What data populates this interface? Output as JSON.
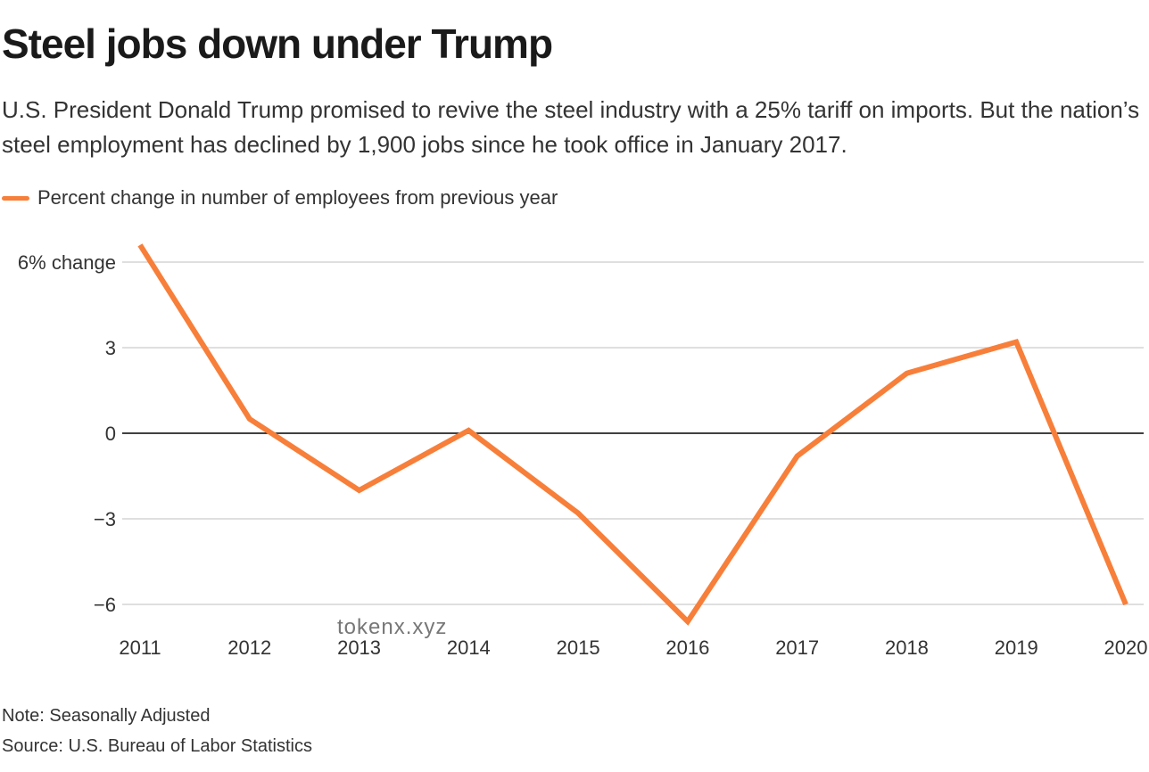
{
  "chart_data": {
    "type": "line",
    "title": "Steel jobs down under Trump",
    "subtitle": "U.S. President Donald Trump promised to revive the steel industry with a 25% tariff on imports. But the nation’s steel employment has declined by 1,900 jobs since he took office in January 2017.",
    "legend": "Percent change in number of employees from previous year",
    "x": [
      "2011",
      "2012",
      "2013",
      "2014",
      "2015",
      "2016",
      "2017",
      "2018",
      "2019",
      "2020"
    ],
    "series": [
      {
        "name": "Percent change in number of employees from previous year",
        "values": [
          6.6,
          0.5,
          -2.0,
          0.1,
          -2.8,
          -6.6,
          -0.8,
          2.1,
          3.2,
          -6.0
        ]
      }
    ],
    "yticks": [
      6,
      3,
      0,
      -3,
      -6
    ],
    "ytick_labels": [
      "6% change",
      "3",
      "0",
      "−3",
      "−6"
    ],
    "ylim": [
      -6,
      6
    ],
    "xlabel": "",
    "ylabel": "",
    "grid": true,
    "legend_position": "top-left",
    "line_color": "#f77f3a",
    "grid_color": "#cccccc",
    "zero_line_color": "#000000"
  },
  "footer": {
    "note": "Note: Seasonally Adjusted",
    "source": "Source: U.S. Bureau of Labor Statistics"
  },
  "watermark": "tokenx.xyz"
}
